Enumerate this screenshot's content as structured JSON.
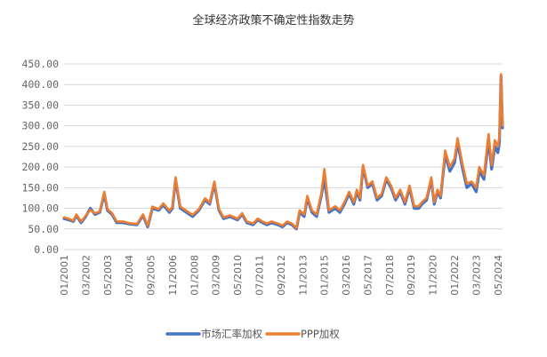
{
  "chart_data": {
    "type": "line",
    "title": "全球经济政策不确定性指数走势",
    "ylim": [
      0,
      450
    ],
    "yticks": [
      "0.00",
      "50.00",
      "100.00",
      "150.00",
      "200.00",
      "250.00",
      "300.00",
      "350.00",
      "400.00",
      "450.00"
    ],
    "xticks": [
      "01/2001",
      "03/2002",
      "05/2003",
      "07/2004",
      "09/2005",
      "11/2006",
      "01/2008",
      "03/2009",
      "05/2010",
      "07/2011",
      "09/2012",
      "11/2013",
      "01/2015",
      "03/2016",
      "05/2017",
      "07/2018",
      "09/2019",
      "11/2020",
      "01/2022",
      "03/2023",
      "05/2024"
    ],
    "x_start": "2001-01",
    "x_end": "2024-08",
    "grid": "horizontal",
    "legend_position": "bottom",
    "series": [
      {
        "name": "市场汇率加权",
        "color": "#4472C4",
        "points": [
          [
            "2001-01",
            75
          ],
          [
            "2001-04",
            72
          ],
          [
            "2001-07",
            68
          ],
          [
            "2001-09",
            82
          ],
          [
            "2001-12",
            65
          ],
          [
            "2002-03",
            80
          ],
          [
            "2002-06",
            100
          ],
          [
            "2002-09",
            85
          ],
          [
            "2002-12",
            90
          ],
          [
            "2003-03",
            135
          ],
          [
            "2003-05",
            95
          ],
          [
            "2003-08",
            85
          ],
          [
            "2003-11",
            65
          ],
          [
            "2004-03",
            65
          ],
          [
            "2004-07",
            62
          ],
          [
            "2004-12",
            60
          ],
          [
            "2005-04",
            82
          ],
          [
            "2005-07",
            55
          ],
          [
            "2005-10",
            100
          ],
          [
            "2006-02",
            95
          ],
          [
            "2006-05",
            108
          ],
          [
            "2006-09",
            90
          ],
          [
            "2006-11",
            100
          ],
          [
            "2007-01",
            170
          ],
          [
            "2007-04",
            100
          ],
          [
            "2007-08",
            90
          ],
          [
            "2007-12",
            80
          ],
          [
            "2008-04",
            95
          ],
          [
            "2008-08",
            120
          ],
          [
            "2008-11",
            110
          ],
          [
            "2009-02",
            160
          ],
          [
            "2009-05",
            95
          ],
          [
            "2009-08",
            75
          ],
          [
            "2009-12",
            80
          ],
          [
            "2010-05",
            72
          ],
          [
            "2010-08",
            85
          ],
          [
            "2010-11",
            65
          ],
          [
            "2011-03",
            60
          ],
          [
            "2011-06",
            72
          ],
          [
            "2011-09",
            65
          ],
          [
            "2011-12",
            60
          ],
          [
            "2012-03",
            65
          ],
          [
            "2012-07",
            60
          ],
          [
            "2012-10",
            55
          ],
          [
            "2013-01",
            65
          ],
          [
            "2013-04",
            60
          ],
          [
            "2013-07",
            50
          ],
          [
            "2013-09",
            90
          ],
          [
            "2013-12",
            80
          ],
          [
            "2014-02",
            125
          ],
          [
            "2014-05",
            90
          ],
          [
            "2014-08",
            80
          ],
          [
            "2014-11",
            130
          ],
          [
            "2015-01",
            170
          ],
          [
            "2015-04",
            90
          ],
          [
            "2015-08",
            100
          ],
          [
            "2015-11",
            90
          ],
          [
            "2016-02",
            110
          ],
          [
            "2016-05",
            135
          ],
          [
            "2016-08",
            110
          ],
          [
            "2016-10",
            140
          ],
          [
            "2016-12",
            120
          ],
          [
            "2017-02",
            200
          ],
          [
            "2017-05",
            150
          ],
          [
            "2017-08",
            160
          ],
          [
            "2017-11",
            120
          ],
          [
            "2018-02",
            130
          ],
          [
            "2018-05",
            170
          ],
          [
            "2018-08",
            150
          ],
          [
            "2018-11",
            120
          ],
          [
            "2019-02",
            140
          ],
          [
            "2019-05",
            110
          ],
          [
            "2019-08",
            150
          ],
          [
            "2019-11",
            100
          ],
          [
            "2020-02",
            100
          ],
          [
            "2020-04",
            110
          ],
          [
            "2020-07",
            120
          ],
          [
            "2020-10",
            170
          ],
          [
            "2020-12",
            110
          ],
          [
            "2021-02",
            140
          ],
          [
            "2021-04",
            125
          ],
          [
            "2021-07",
            230
          ],
          [
            "2021-10",
            190
          ],
          [
            "2022-01",
            210
          ],
          [
            "2022-03",
            260
          ],
          [
            "2022-06",
            200
          ],
          [
            "2022-09",
            150
          ],
          [
            "2022-12",
            160
          ],
          [
            "2023-03",
            140
          ],
          [
            "2023-05",
            190
          ],
          [
            "2023-08",
            170
          ],
          [
            "2023-11",
            265
          ],
          [
            "2024-01",
            195
          ],
          [
            "2024-03",
            250
          ],
          [
            "2024-05",
            235
          ],
          [
            "2024-06",
            260
          ],
          [
            "2024-07",
            420
          ],
          [
            "2024-08",
            295
          ]
        ]
      },
      {
        "name": "PPP加权",
        "color": "#ED7D31",
        "points": [
          [
            "2001-01",
            78
          ],
          [
            "2001-04",
            75
          ],
          [
            "2001-07",
            70
          ],
          [
            "2001-09",
            85
          ],
          [
            "2001-12",
            68
          ],
          [
            "2002-03",
            82
          ],
          [
            "2002-06",
            96
          ],
          [
            "2002-09",
            88
          ],
          [
            "2002-12",
            92
          ],
          [
            "2003-03",
            140
          ],
          [
            "2003-05",
            98
          ],
          [
            "2003-08",
            88
          ],
          [
            "2003-11",
            68
          ],
          [
            "2004-03",
            68
          ],
          [
            "2004-07",
            64
          ],
          [
            "2004-12",
            62
          ],
          [
            "2005-04",
            85
          ],
          [
            "2005-07",
            58
          ],
          [
            "2005-10",
            104
          ],
          [
            "2006-02",
            98
          ],
          [
            "2006-05",
            112
          ],
          [
            "2006-09",
            94
          ],
          [
            "2006-11",
            104
          ],
          [
            "2007-01",
            175
          ],
          [
            "2007-04",
            104
          ],
          [
            "2007-08",
            94
          ],
          [
            "2007-12",
            84
          ],
          [
            "2008-04",
            98
          ],
          [
            "2008-08",
            124
          ],
          [
            "2008-11",
            114
          ],
          [
            "2009-02",
            165
          ],
          [
            "2009-05",
            98
          ],
          [
            "2009-08",
            78
          ],
          [
            "2009-12",
            83
          ],
          [
            "2010-05",
            75
          ],
          [
            "2010-08",
            88
          ],
          [
            "2010-11",
            68
          ],
          [
            "2011-03",
            63
          ],
          [
            "2011-06",
            75
          ],
          [
            "2011-09",
            68
          ],
          [
            "2011-12",
            63
          ],
          [
            "2012-03",
            68
          ],
          [
            "2012-07",
            63
          ],
          [
            "2012-10",
            58
          ],
          [
            "2013-01",
            68
          ],
          [
            "2013-04",
            63
          ],
          [
            "2013-07",
            52
          ],
          [
            "2013-09",
            95
          ],
          [
            "2013-12",
            85
          ],
          [
            "2014-02",
            130
          ],
          [
            "2014-05",
            95
          ],
          [
            "2014-08",
            85
          ],
          [
            "2014-11",
            135
          ],
          [
            "2015-01",
            195
          ],
          [
            "2015-04",
            95
          ],
          [
            "2015-08",
            105
          ],
          [
            "2015-11",
            95
          ],
          [
            "2016-02",
            115
          ],
          [
            "2016-05",
            140
          ],
          [
            "2016-08",
            115
          ],
          [
            "2016-10",
            145
          ],
          [
            "2016-12",
            125
          ],
          [
            "2017-02",
            205
          ],
          [
            "2017-05",
            155
          ],
          [
            "2017-08",
            165
          ],
          [
            "2017-11",
            125
          ],
          [
            "2018-02",
            135
          ],
          [
            "2018-05",
            175
          ],
          [
            "2018-08",
            155
          ],
          [
            "2018-11",
            125
          ],
          [
            "2019-02",
            145
          ],
          [
            "2019-05",
            115
          ],
          [
            "2019-08",
            155
          ],
          [
            "2019-11",
            105
          ],
          [
            "2020-02",
            105
          ],
          [
            "2020-04",
            115
          ],
          [
            "2020-07",
            125
          ],
          [
            "2020-10",
            175
          ],
          [
            "2020-12",
            115
          ],
          [
            "2021-02",
            145
          ],
          [
            "2021-04",
            130
          ],
          [
            "2021-07",
            240
          ],
          [
            "2021-10",
            200
          ],
          [
            "2022-01",
            220
          ],
          [
            "2022-03",
            270
          ],
          [
            "2022-06",
            210
          ],
          [
            "2022-09",
            160
          ],
          [
            "2022-12",
            165
          ],
          [
            "2023-03",
            150
          ],
          [
            "2023-05",
            200
          ],
          [
            "2023-08",
            180
          ],
          [
            "2023-11",
            280
          ],
          [
            "2024-01",
            205
          ],
          [
            "2024-03",
            265
          ],
          [
            "2024-05",
            250
          ],
          [
            "2024-06",
            275
          ],
          [
            "2024-07",
            425
          ],
          [
            "2024-08",
            300
          ]
        ]
      }
    ]
  }
}
